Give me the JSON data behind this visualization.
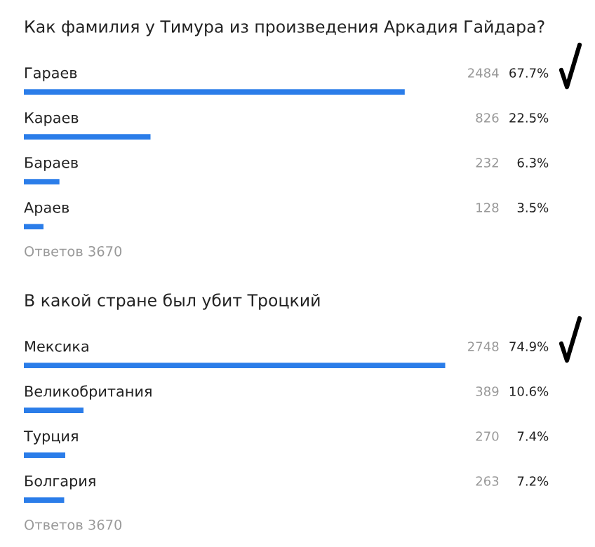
{
  "chart_data": [
    {
      "type": "bar",
      "orientation": "horizontal",
      "title": "Как фамилия у Тимура из произведения Аркадия Гайдара?",
      "categories": [
        "Гараев",
        "Караев",
        "Бараев",
        "Араев"
      ],
      "values": [
        2484,
        826,
        232,
        128
      ],
      "color": "#2b7de9",
      "data_labels": true,
      "annotations": [
        "67.7%",
        "22.5%",
        "6.3%",
        "3.5%",
        "Ответов 3670"
      ]
    },
    {
      "type": "bar",
      "orientation": "horizontal",
      "title": "В какой стране был убит Троцкий",
      "categories": [
        "Мексика",
        "Великобритания",
        "Турция",
        "Болгария"
      ],
      "values": [
        2748,
        389,
        270,
        263
      ],
      "color": "#2b7de9",
      "data_labels": true,
      "annotations": [
        "74.9%",
        "10.6%",
        "7.4%",
        "7.2%",
        "Ответов 3670"
      ]
    }
  ]
}
